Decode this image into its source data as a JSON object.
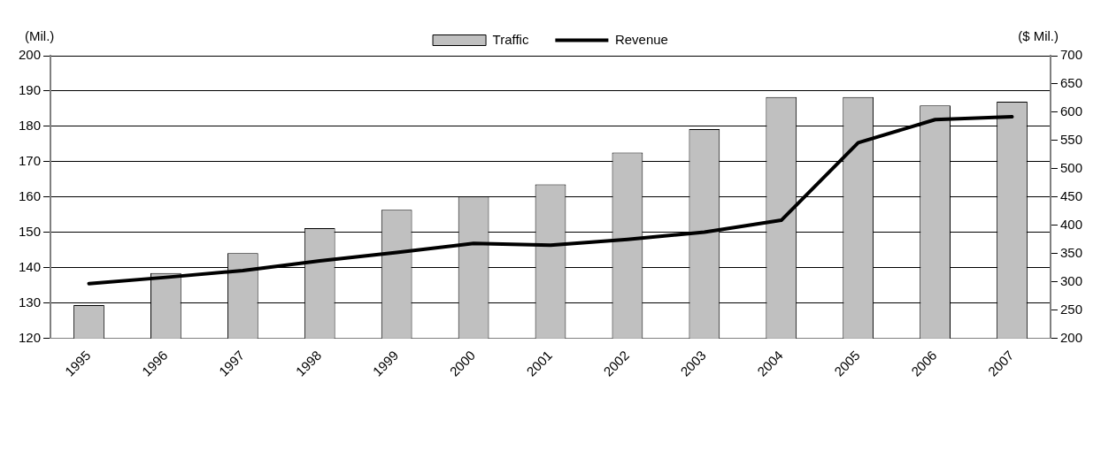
{
  "chart_data": {
    "type": "bar",
    "categories": [
      "1995",
      "1996",
      "1997",
      "1998",
      "1999",
      "2000",
      "2001",
      "2002",
      "2003",
      "2004",
      "2005",
      "2006",
      "2007"
    ],
    "series": [
      {
        "name": "Traffic",
        "color": "#c0c0c0",
        "values": [
          129.4,
          138.5,
          144.1,
          151.2,
          156.4,
          160.2,
          163.6,
          172.6,
          179.2,
          188.3,
          188.3,
          185.9,
          187.0
        ]
      },
      {
        "name": "Revenue",
        "type": "line",
        "axis": "y2",
        "color": "#000000",
        "values": [
          297,
          308,
          320,
          337,
          352,
          368,
          365,
          375,
          388,
          409,
          546,
          587,
          592
        ]
      }
    ],
    "ylabel": "(Mil.)",
    "y2label": "($ Mil.)",
    "ylim": [
      120,
      200
    ],
    "yticks": [
      120,
      130,
      140,
      150,
      160,
      170,
      180,
      190,
      200
    ],
    "y2lim": [
      200,
      700
    ],
    "y2ticks": [
      200,
      250,
      300,
      350,
      400,
      450,
      500,
      550,
      600,
      650,
      700
    ],
    "grid": "y",
    "legend": "top",
    "marker": "none"
  }
}
